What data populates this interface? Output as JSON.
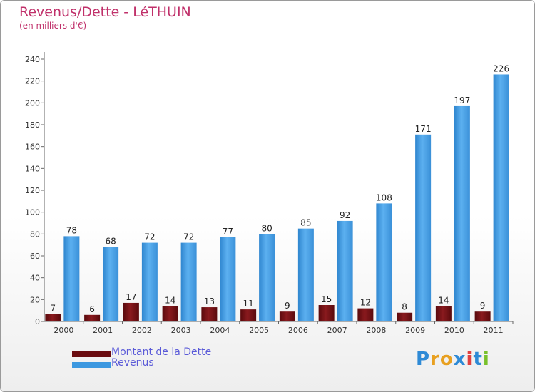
{
  "chart_data": {
    "type": "bar",
    "title": "Revenus/Dette - LéTHUIN",
    "subtitle": "(en milliers d'€)",
    "categories": [
      "2000",
      "2001",
      "2002",
      "2003",
      "2004",
      "2005",
      "2006",
      "2007",
      "2008",
      "2009",
      "2010",
      "2011"
    ],
    "series": [
      {
        "name": "Montant de la Dette",
        "color": "#7a0f12",
        "values": [
          7,
          6,
          17,
          14,
          13,
          11,
          9,
          15,
          12,
          8,
          14,
          9
        ]
      },
      {
        "name": "Revenus",
        "color": "#4aa3e8",
        "values": [
          78,
          68,
          72,
          72,
          77,
          80,
          85,
          92,
          108,
          171,
          197,
          226
        ]
      }
    ],
    "ylim": [
      0,
      240
    ],
    "yticks": [
      0,
      20,
      40,
      60,
      80,
      100,
      120,
      140,
      160,
      180,
      200,
      220,
      240
    ],
    "grid": false,
    "legend": "bottom-left"
  },
  "logo": {
    "letters": [
      "P",
      "r",
      "o",
      "x",
      "i",
      "t",
      "i"
    ],
    "colors": [
      "#2e8ad6",
      "#e8a020",
      "#e8a020",
      "#2e8ad6",
      "#e04040",
      "#2e8ad6",
      "#78c02a"
    ]
  }
}
